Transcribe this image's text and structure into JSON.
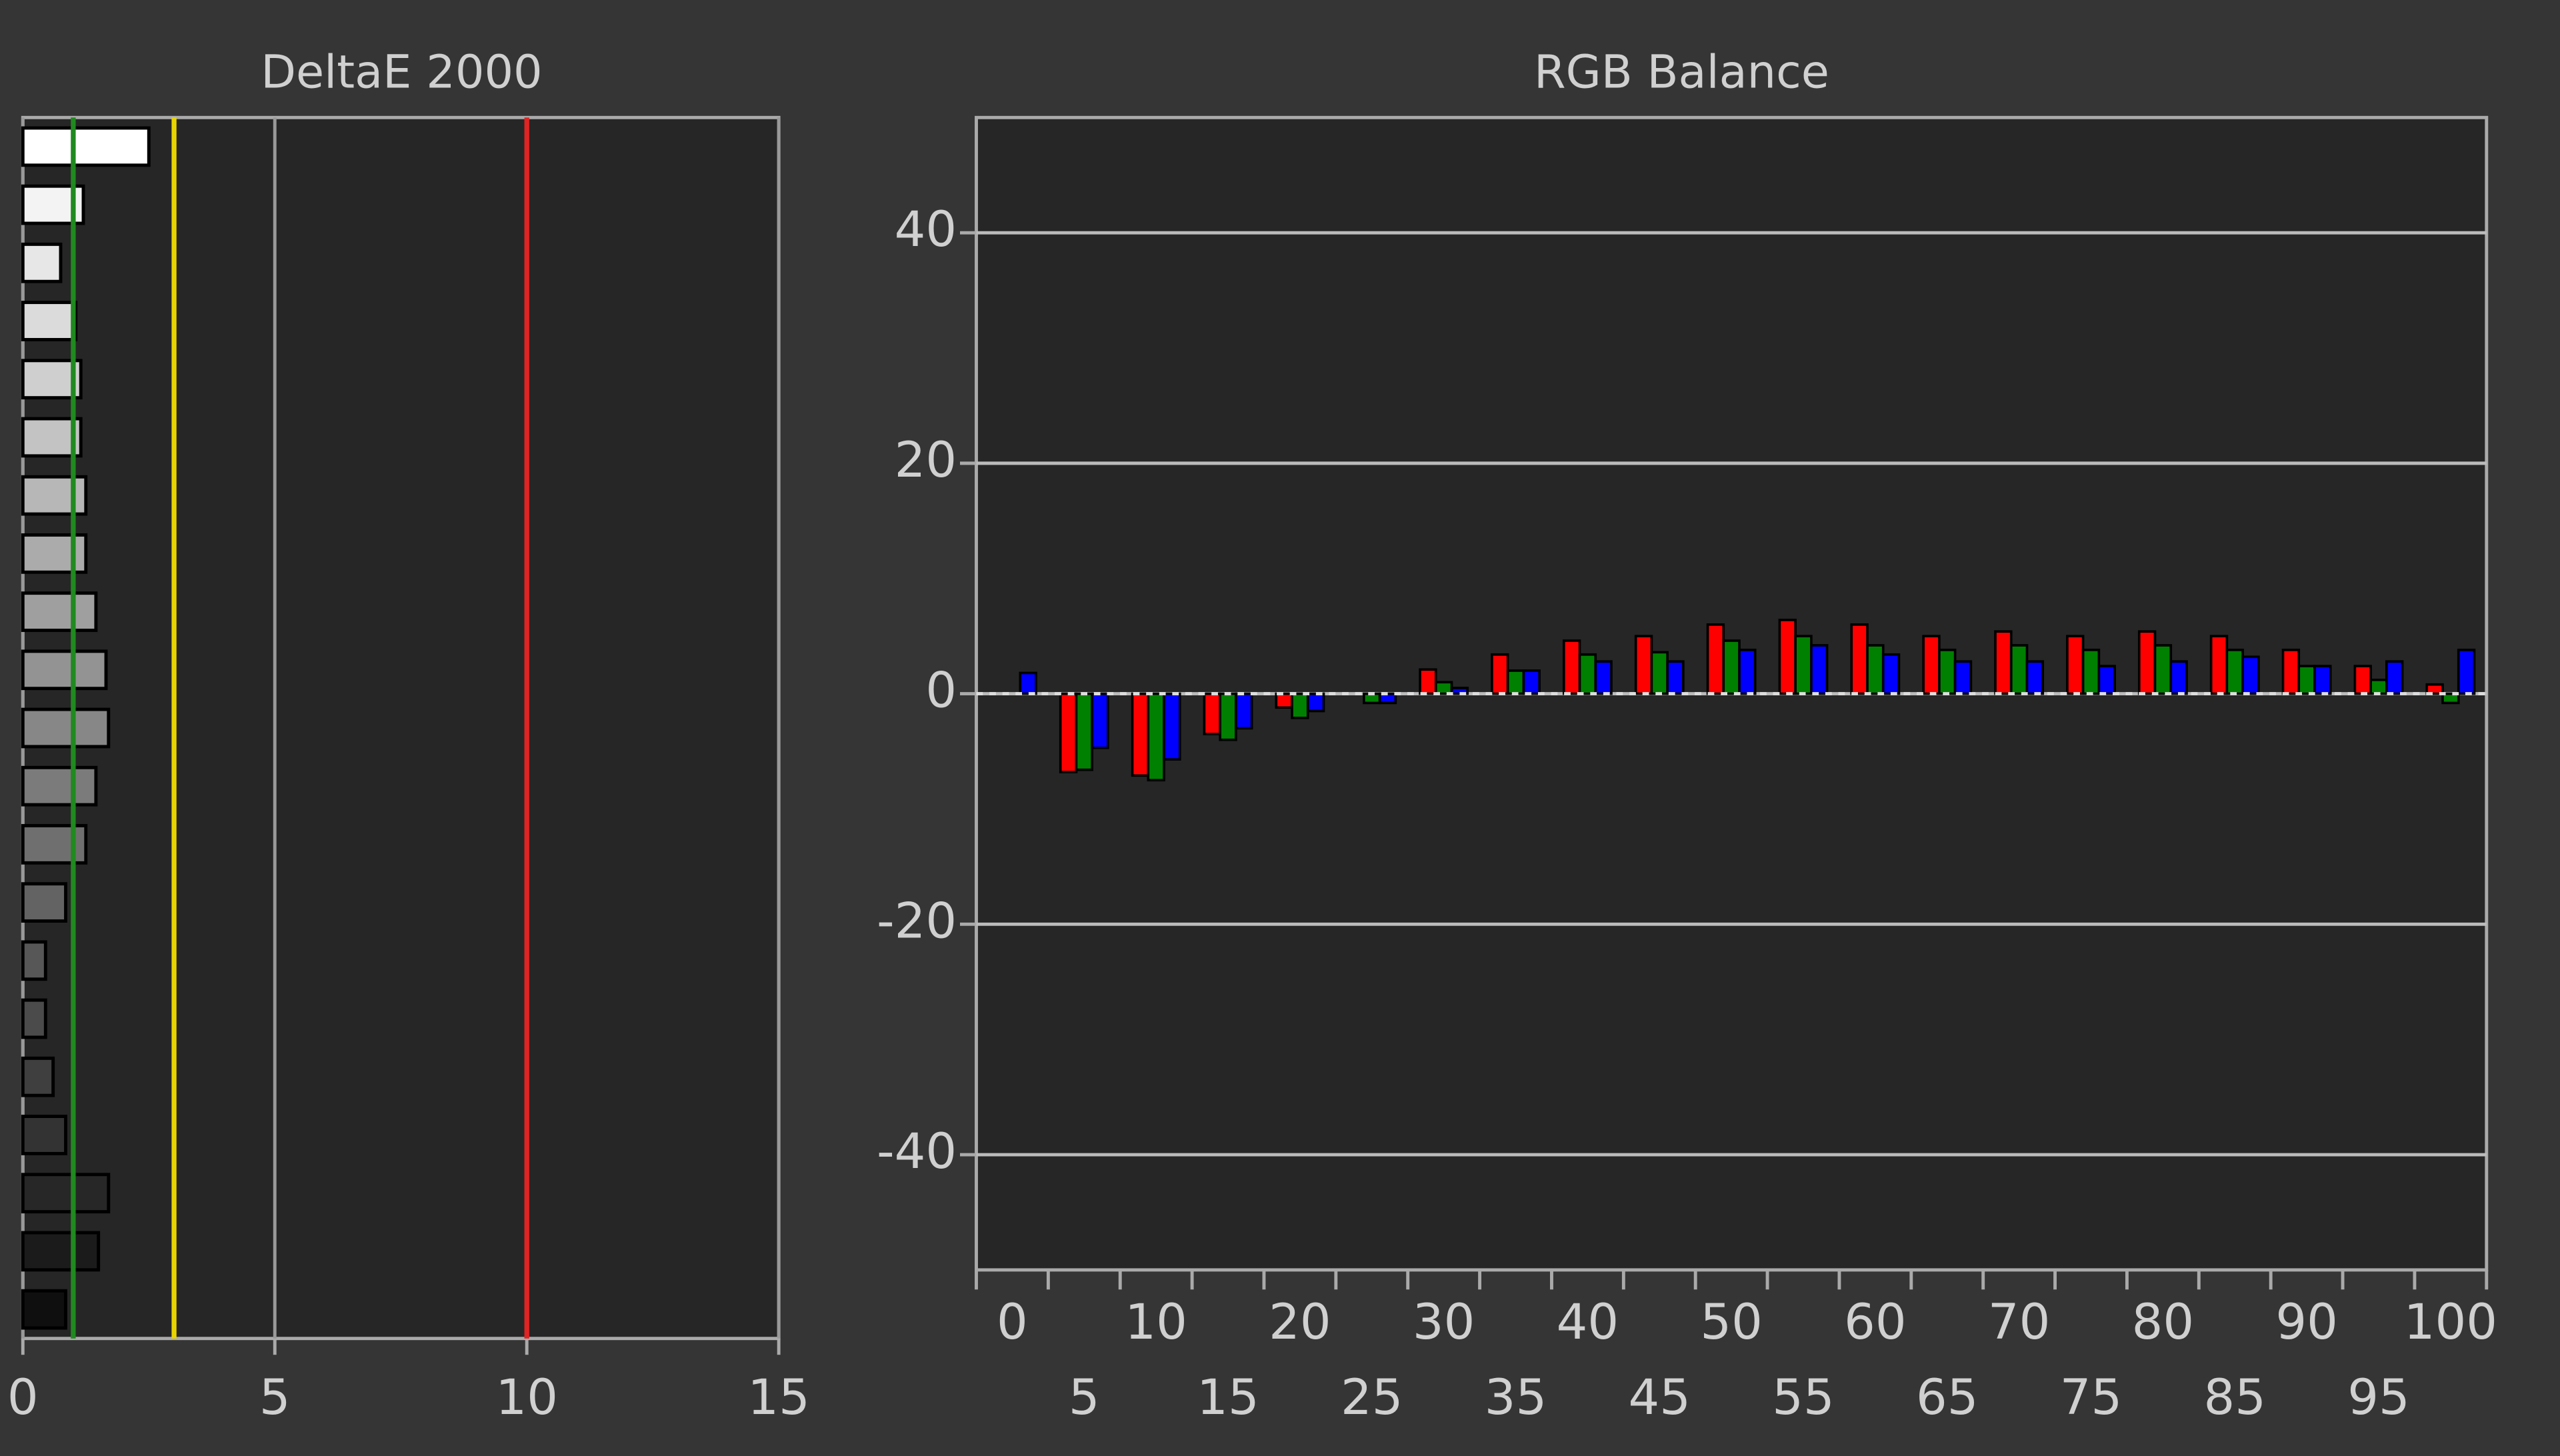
{
  "chart_data": [
    {
      "type": "hbar",
      "title": "DeltaE 2000",
      "values": [
        2.5,
        1.2,
        0.75,
        1.05,
        1.15,
        1.15,
        1.25,
        1.25,
        1.45,
        1.65,
        1.7,
        1.45,
        1.25,
        0.85,
        0.45,
        0.45,
        0.6,
        0.85,
        1.7,
        1.5,
        0.85
      ],
      "bar_colors": [
        "#ffffff",
        "#f3f3f3",
        "#e7e7e7",
        "#dbdbdb",
        "#cfcfcf",
        "#c3c3c3",
        "#b7b7b7",
        "#ababab",
        "#9f9f9f",
        "#939393",
        "#878787",
        "#7b7b7b",
        "#6f6f6f",
        "#636363",
        "#575757",
        "#4b4b4b",
        "#3f3f3f",
        "#333333",
        "#272727",
        "#1b1b1b",
        "#0f0f0f"
      ],
      "xlim": [
        0,
        15
      ],
      "xticks": [
        0,
        5,
        10,
        15
      ],
      "grid": true,
      "reference_lines": [
        {
          "value": 1,
          "color": "#1f8a1f"
        },
        {
          "value": 3,
          "color": "#e8d400"
        },
        {
          "value": 10,
          "color": "#e02424"
        }
      ]
    },
    {
      "type": "grouped_bar",
      "title": "RGB Balance",
      "categories": [
        0,
        5,
        10,
        15,
        20,
        25,
        30,
        35,
        40,
        45,
        50,
        55,
        60,
        65,
        70,
        75,
        80,
        85,
        90,
        95,
        100
      ],
      "series": [
        {
          "name": "Red",
          "color": "#ff0000",
          "values": [
            0,
            -6.8,
            -7.1,
            -3.5,
            -1.2,
            0,
            2.1,
            3.4,
            4.6,
            5,
            6,
            6.4,
            6,
            5,
            5.4,
            5,
            5.4,
            5,
            3.8,
            2.4,
            0.8
          ]
        },
        {
          "name": "Green",
          "color": "#008000",
          "values": [
            0,
            -6.6,
            -7.5,
            -4,
            -2.1,
            -0.8,
            1,
            2,
            3.4,
            3.6,
            4.6,
            5,
            4.2,
            3.8,
            4.2,
            3.8,
            4.2,
            3.8,
            2.4,
            1.2,
            -0.8
          ]
        },
        {
          "name": "Blue",
          "color": "#0000ff",
          "values": [
            1.8,
            -4.7,
            -5.7,
            -3,
            -1.5,
            -0.8,
            0.5,
            2,
            2.8,
            2.8,
            3.8,
            4.2,
            3.4,
            2.8,
            2.8,
            2.4,
            2.8,
            3.2,
            2.4,
            2.8,
            3.8
          ]
        }
      ],
      "ylim": [
        -50,
        50
      ],
      "yticks": [
        -40,
        -20,
        0,
        20,
        40
      ],
      "grid": true,
      "zero_line": true
    }
  ]
}
